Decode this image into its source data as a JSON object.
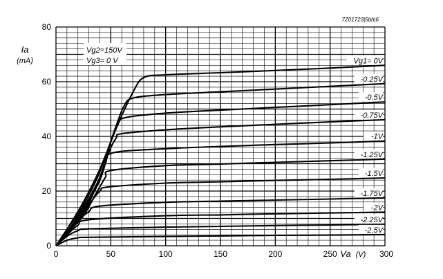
{
  "chart_data": {
    "type": "line",
    "reference": "7Z01723|5bh|6",
    "ylabel": "Ia",
    "yunit": "(mA)",
    "xlabel": "Va",
    "xunit": "(V)",
    "conditions": [
      "Vg2=150V",
      "Vg3= 0 V"
    ],
    "param_label": "Vg1=",
    "xlim": [
      0,
      300
    ],
    "ylim": [
      0,
      80
    ],
    "xticks": [
      0,
      50,
      100,
      150,
      200,
      250,
      300
    ],
    "yticks": [
      0,
      20,
      40,
      60,
      80
    ],
    "grid": true,
    "series": [
      {
        "name": "0V",
        "x": [
          0,
          10,
          25,
          40,
          55,
          70,
          80,
          100,
          150,
          200,
          250,
          300
        ],
        "y": [
          0,
          6,
          16,
          28,
          43,
          56,
          61.5,
          62.5,
          63.3,
          64.1,
          65,
          66
        ]
      },
      {
        "name": "-0.25V",
        "x": [
          0,
          10,
          25,
          40,
          55,
          62,
          70,
          100,
          150,
          200,
          250,
          300
        ],
        "y": [
          0,
          6,
          15,
          27,
          44,
          51,
          54,
          55.3,
          56.3,
          57.3,
          58.3,
          59.3
        ]
      },
      {
        "name": "-0.5V",
        "x": [
          0,
          10,
          25,
          40,
          50,
          57,
          65,
          100,
          150,
          200,
          250,
          300
        ],
        "y": [
          0,
          5,
          14,
          25,
          38,
          45,
          47,
          48.5,
          49.6,
          50.6,
          51.6,
          52.6
        ]
      },
      {
        "name": "-0.75V",
        "x": [
          0,
          10,
          25,
          40,
          48,
          55,
          60,
          100,
          150,
          200,
          250,
          300
        ],
        "y": [
          0,
          5,
          13,
          24,
          34,
          39.5,
          41,
          42.4,
          43.5,
          44.4,
          45.3,
          46.1
        ]
      },
      {
        "name": "-1V",
        "x": [
          0,
          10,
          25,
          35,
          45,
          52,
          100,
          150,
          200,
          250,
          300
        ],
        "y": [
          0,
          5,
          12,
          20,
          30,
          34,
          35.5,
          36.3,
          37,
          37.6,
          38.3
        ]
      },
      {
        "name": "-1.25V",
        "x": [
          0,
          10,
          25,
          35,
          45,
          50,
          100,
          150,
          200,
          250,
          300
        ],
        "y": [
          0,
          4.5,
          11,
          18,
          25,
          27.5,
          29.3,
          29.9,
          30.5,
          31.1,
          31.7
        ]
      },
      {
        "name": "-1.5V",
        "x": [
          0,
          10,
          20,
          30,
          40,
          48,
          100,
          150,
          200,
          250,
          300
        ],
        "y": [
          0,
          4,
          9,
          15,
          20,
          21.5,
          22.9,
          23.4,
          23.9,
          24.3,
          24.8
        ]
      },
      {
        "name": "-1.75V",
        "x": [
          0,
          10,
          20,
          30,
          40,
          100,
          150,
          200,
          250,
          300
        ],
        "y": [
          0,
          4,
          9,
          12.5,
          14.5,
          15.9,
          16.3,
          16.7,
          17.1,
          17.5
        ]
      },
      {
        "name": "-2V",
        "x": [
          0,
          10,
          20,
          30,
          100,
          150,
          200,
          250,
          300
        ],
        "y": [
          0,
          4,
          7.5,
          9.5,
          11,
          11.3,
          11.7,
          12,
          12.3
        ]
      },
      {
        "name": "-2.25V",
        "x": [
          0,
          10,
          20,
          30,
          100,
          150,
          200,
          250,
          300
        ],
        "y": [
          0,
          3.5,
          5.5,
          6.2,
          6.8,
          7.1,
          7.4,
          7.6,
          7.9
        ]
      },
      {
        "name": "-2.5V",
        "x": [
          0,
          10,
          20,
          30,
          100,
          150,
          200,
          250,
          300
        ],
        "y": [
          0,
          2,
          2.9,
          3.1,
          3.4,
          3.6,
          3.8,
          3.9,
          4.1
        ]
      }
    ],
    "curve_labels": [
      "Vg1= 0V",
      "-0.25V",
      "-0.5V",
      "-0.75V",
      "-1V",
      "-1.25V",
      "-1.5V",
      "-1.75V",
      "-2V",
      "-2.25V",
      "-2.5V"
    ]
  }
}
